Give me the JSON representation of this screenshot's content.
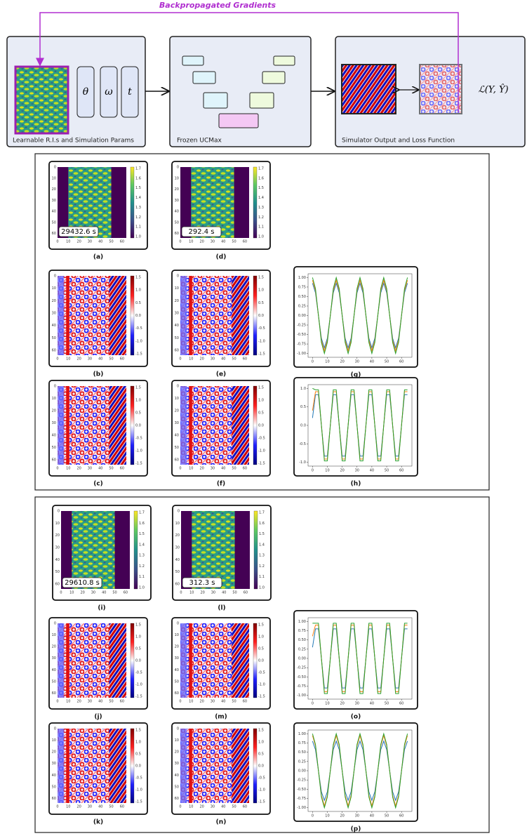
{
  "diagram": {
    "arrow_label": "Backpropagated Gradients",
    "boxes": [
      {
        "label": "Learnable R.I.s and Simulation Params",
        "params": [
          "θ",
          "ω",
          "t"
        ]
      },
      {
        "label": "Frozen UCMax"
      },
      {
        "label": "Simulator Output and Loss Function",
        "loss": "ℒ(Y, Ŷ)"
      }
    ]
  },
  "axes": {
    "map_lim": [
      0,
      64
    ],
    "map_ticks": [
      0,
      10,
      20,
      30,
      40,
      50,
      60
    ],
    "ri_colorbar": [
      "1.7",
      "1.6",
      "1.5",
      "1.4",
      "1.3",
      "1.2",
      "1.1",
      "1.0"
    ],
    "field_colorbar": [
      "1.5",
      "1.0",
      "0.5",
      "0.0",
      "-0.5",
      "-1.0",
      "-1.5"
    ],
    "line_x": [
      0,
      2,
      4,
      6,
      8,
      10,
      12,
      14,
      16,
      18,
      20,
      22,
      24,
      26,
      28,
      30,
      32,
      34,
      36,
      38,
      40,
      42,
      44,
      46,
      48,
      50,
      52,
      54,
      56,
      58,
      60,
      62,
      64
    ],
    "line_xlim": [
      -3,
      67
    ],
    "line_xticks": [
      0,
      10,
      20,
      30,
      40,
      50,
      60
    ]
  },
  "panels": [
    {
      "caption": "(a)",
      "time": "29432.6 s"
    },
    {
      "caption": "(b)"
    },
    {
      "caption": "(c)"
    },
    {
      "caption": "(d)",
      "time": "292.4 s"
    },
    {
      "caption": "(e)"
    },
    {
      "caption": "(f)"
    },
    {
      "caption": "(g)",
      "ylim": [
        -1.1,
        1.1
      ],
      "yticks": [
        {
          "value": 1,
          "label": "1.00"
        },
        {
          "value": 0.75,
          "label": "0.75"
        },
        {
          "value": 0.5,
          "label": "0.50"
        },
        {
          "value": 0.25,
          "label": "0.25"
        },
        {
          "value": 0,
          "label": "0.00"
        },
        {
          "value": -0.25,
          "label": "-0.25"
        },
        {
          "value": -0.5,
          "label": "-0.50"
        },
        {
          "value": -0.75,
          "label": "-0.75"
        },
        {
          "value": -1,
          "label": "-1.00"
        }
      ],
      "series": [
        {
          "color": "#1f77b4",
          "values": [
            0.85,
            0.6,
            0,
            -0.6,
            -0.85,
            -0.6,
            0,
            0.6,
            0.85,
            0.6,
            0,
            -0.6,
            -0.85,
            -0.6,
            0,
            0.6,
            0.85,
            0.6,
            0,
            -0.6,
            -0.85,
            -0.6,
            0,
            0.6,
            0.85,
            0.6,
            0,
            -0.6,
            -0.85,
            -0.6,
            0,
            0.6,
            0.85
          ]
        },
        {
          "color": "#ff7f0e",
          "values": [
            0.93,
            0.66,
            0,
            -0.66,
            -0.93,
            -0.66,
            0,
            0.66,
            0.93,
            0.66,
            0,
            -0.66,
            -0.93,
            -0.66,
            0,
            0.66,
            0.93,
            0.66,
            0,
            -0.66,
            -0.93,
            -0.66,
            0,
            0.66,
            0.93,
            0.66,
            0,
            -0.66,
            -0.93,
            -0.66,
            0,
            0.66,
            0.93
          ]
        },
        {
          "color": "#2ca02c",
          "values": [
            1,
            0.71,
            0,
            -0.71,
            -1,
            -0.71,
            0,
            0.71,
            1,
            0.71,
            0,
            -0.71,
            -1,
            -0.71,
            0,
            0.71,
            1,
            0.71,
            0,
            -0.71,
            -1,
            -0.71,
            0,
            0.71,
            1,
            0.71,
            0,
            -0.71,
            -1,
            -0.71,
            0,
            0.71,
            1
          ]
        }
      ]
    },
    {
      "caption": "(h)",
      "ylim": [
        -1.1,
        1.1
      ],
      "yticks": [
        {
          "value": 1,
          "label": "1.0"
        },
        {
          "value": 0.5,
          "label": "0.5"
        },
        {
          "value": 0,
          "label": "0.0"
        },
        {
          "value": -0.5,
          "label": "-0.5"
        },
        {
          "value": -1,
          "label": "-1.0"
        }
      ],
      "series": [
        {
          "color": "#1f77b4",
          "values": [
            0.2,
            0.83,
            0.83,
            0,
            -0.83,
            -0.83,
            0,
            0.83,
            0.83,
            0,
            -0.83,
            -0.83,
            0,
            0.83,
            0.83,
            0,
            -0.83,
            -0.83,
            0,
            0.83,
            0.83,
            0,
            -0.83,
            -0.83,
            0,
            0.83,
            0.83,
            0,
            -0.83,
            -0.83,
            0,
            0.83,
            0.83
          ]
        },
        {
          "color": "#ff7f0e",
          "values": [
            0.4,
            0.91,
            0.91,
            0,
            -0.91,
            -0.91,
            0,
            0.91,
            0.91,
            0,
            -0.91,
            -0.91,
            0,
            0.91,
            0.91,
            0,
            -0.91,
            -0.91,
            0,
            0.91,
            0.91,
            0,
            -0.91,
            -0.91,
            0,
            0.91,
            0.91,
            0,
            -0.91,
            -0.91,
            0,
            0.91,
            0.91
          ]
        },
        {
          "color": "#2ca02c",
          "values": [
            1,
            0.96,
            0.96,
            0,
            -0.96,
            -0.96,
            0,
            0.96,
            0.96,
            0,
            -0.96,
            -0.96,
            0,
            0.96,
            0.96,
            0,
            -0.96,
            -0.96,
            0,
            0.96,
            0.96,
            0,
            -0.96,
            -0.96,
            0,
            0.96,
            0.96,
            0,
            -0.96,
            -0.96,
            0,
            0.96,
            0.96
          ]
        }
      ]
    },
    {
      "caption": "(i)",
      "time": "29610.8 s"
    },
    {
      "caption": "(j)"
    },
    {
      "caption": "(k)"
    },
    {
      "caption": "(l)",
      "time": "312.3 s"
    },
    {
      "caption": "(m)"
    },
    {
      "caption": "(n)"
    },
    {
      "caption": "(o)",
      "ylim": [
        -1.1,
        1.1
      ],
      "yticks": [
        {
          "value": 1,
          "label": "1.00"
        },
        {
          "value": 0.75,
          "label": "0.75"
        },
        {
          "value": 0.5,
          "label": "0.50"
        },
        {
          "value": 0.25,
          "label": "0.25"
        },
        {
          "value": 0,
          "label": "0.00"
        },
        {
          "value": -0.25,
          "label": "-0.25"
        },
        {
          "value": -0.5,
          "label": "-0.50"
        },
        {
          "value": -0.75,
          "label": "-0.75"
        },
        {
          "value": -1,
          "label": "-1.00"
        }
      ],
      "series": [
        {
          "color": "#1f77b4",
          "values": [
            0.3,
            0.8,
            0.8,
            0,
            -0.8,
            -0.8,
            0,
            0.8,
            0.8,
            0,
            -0.8,
            -0.8,
            0,
            0.8,
            0.8,
            0,
            -0.8,
            -0.8,
            0,
            0.8,
            0.8,
            0,
            -0.8,
            -0.8,
            0,
            0.8,
            0.8,
            0,
            -0.8,
            -0.8,
            0,
            0.8,
            0.8
          ]
        },
        {
          "color": "#ff7f0e",
          "values": [
            0.6,
            0.9,
            0.9,
            0,
            -0.9,
            -0.9,
            0,
            0.9,
            0.9,
            0,
            -0.9,
            -0.9,
            0,
            0.9,
            0.9,
            0,
            -0.9,
            -0.9,
            0,
            0.9,
            0.9,
            0,
            -0.9,
            -0.9,
            0,
            0.9,
            0.9,
            0,
            -0.9,
            -0.9,
            0,
            0.9,
            0.9
          ]
        },
        {
          "color": "#2ca02c",
          "values": [
            0.95,
            0.95,
            0.95,
            0,
            -0.95,
            -0.95,
            0,
            0.95,
            0.95,
            0,
            -0.95,
            -0.95,
            0,
            0.95,
            0.95,
            0,
            -0.95,
            -0.95,
            0,
            0.95,
            0.95,
            0,
            -0.95,
            -0.95,
            0,
            0.95,
            0.95,
            0,
            -0.95,
            -0.95,
            0,
            0.95,
            0.95
          ]
        }
      ]
    },
    {
      "caption": "(p)",
      "ylim": [
        -1.1,
        1.1
      ],
      "yticks": [
        {
          "value": 1,
          "label": "1.00"
        },
        {
          "value": 0.75,
          "label": "0.75"
        },
        {
          "value": 0.5,
          "label": "0.50"
        },
        {
          "value": 0.25,
          "label": "0.25"
        },
        {
          "value": 0,
          "label": "0.00"
        },
        {
          "value": -0.25,
          "label": "-0.25"
        },
        {
          "value": -0.5,
          "label": "-0.50"
        },
        {
          "value": -0.75,
          "label": "-0.75"
        },
        {
          "value": -1,
          "label": "-1.00"
        }
      ],
      "series": [
        {
          "color": "#1f77b4",
          "values": [
            0.8,
            0.57,
            0,
            -0.57,
            -0.8,
            -0.57,
            0,
            0.57,
            0.8,
            0.57,
            0,
            -0.57,
            -0.8,
            -0.57,
            0,
            0.57,
            0.8,
            0.57,
            0,
            -0.57,
            -0.8,
            -0.57,
            0,
            0.57,
            0.8,
            0.57,
            0,
            -0.57,
            -0.8,
            -0.57,
            0,
            0.57,
            0.8
          ]
        },
        {
          "color": "#ff7f0e",
          "values": [
            0.95,
            0.67,
            0,
            -0.67,
            -0.95,
            -0.67,
            0,
            0.67,
            0.95,
            0.67,
            0,
            -0.67,
            -0.95,
            -0.67,
            0,
            0.67,
            0.95,
            0.67,
            0,
            -0.67,
            -0.95,
            -0.67,
            0,
            0.67,
            0.95,
            0.67,
            0,
            -0.67,
            -0.95,
            -0.67,
            0,
            0.67,
            0.95
          ]
        },
        {
          "color": "#2ca02c",
          "values": [
            1,
            0.71,
            0,
            -0.71,
            -1,
            -0.71,
            0,
            0.71,
            1,
            0.71,
            0,
            -0.71,
            -1,
            -0.71,
            0,
            0.71,
            1,
            0.71,
            0,
            -0.71,
            -1,
            -0.71,
            0,
            0.71,
            1,
            0.71,
            0,
            -0.71,
            -1,
            -0.71,
            0,
            0.71,
            1
          ]
        }
      ]
    }
  ]
}
